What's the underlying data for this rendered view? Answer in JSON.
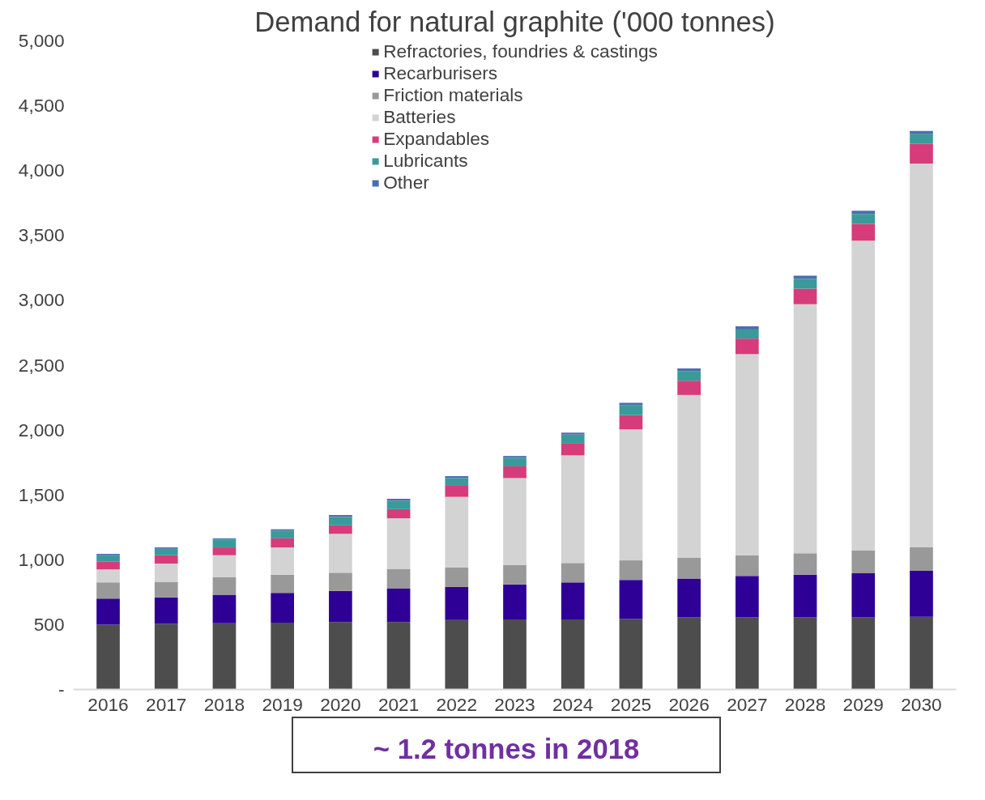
{
  "chart_data": {
    "type": "bar",
    "stacked": true,
    "title": "Demand for natural graphite ('000 tonnes)",
    "categories": [
      "2016",
      "2017",
      "2018",
      "2019",
      "2020",
      "2021",
      "2022",
      "2023",
      "2024",
      "2025",
      "2026",
      "2027",
      "2028",
      "2029",
      "2030"
    ],
    "series": [
      {
        "name": "Refractories, foundries & castings",
        "color": "#4d4d4d",
        "values": [
          500,
          505,
          510,
          515,
          520,
          520,
          535,
          540,
          540,
          545,
          555,
          555,
          555,
          555,
          560
        ]
      },
      {
        "name": "Recarburisers",
        "color": "#2e0096",
        "values": [
          200,
          205,
          220,
          230,
          240,
          260,
          255,
          270,
          285,
          300,
          300,
          320,
          330,
          340,
          355
        ]
      },
      {
        "name": "Friction materials",
        "color": "#999999",
        "values": [
          125,
          120,
          135,
          140,
          140,
          150,
          150,
          150,
          150,
          150,
          160,
          160,
          165,
          175,
          180
        ]
      },
      {
        "name": "Batteries",
        "color": "#d3d3d3",
        "values": [
          100,
          140,
          170,
          210,
          300,
          390,
          545,
          670,
          830,
          1010,
          1255,
          1550,
          1920,
          2390,
          2960
        ]
      },
      {
        "name": "Expandables",
        "color": "#d63c7a",
        "values": [
          60,
          65,
          60,
          70,
          65,
          70,
          85,
          90,
          90,
          110,
          110,
          120,
          120,
          130,
          150
        ]
      },
      {
        "name": "Lubricants",
        "color": "#3a9a9a",
        "values": [
          50,
          50,
          60,
          60,
          65,
          65,
          60,
          65,
          70,
          75,
          75,
          70,
          75,
          75,
          75
        ]
      },
      {
        "name": "Other",
        "color": "#4a6fb0",
        "values": [
          10,
          10,
          10,
          10,
          15,
          15,
          15,
          15,
          15,
          20,
          20,
          25,
          25,
          25,
          25
        ]
      }
    ],
    "ylim": [
      0,
      5000
    ],
    "yticks": [
      {
        "value": 0,
        "label": "-"
      },
      {
        "value": 500,
        "label": "500"
      },
      {
        "value": 1000,
        "label": "1,000"
      },
      {
        "value": 1500,
        "label": "1,500"
      },
      {
        "value": 2000,
        "label": "2,000"
      },
      {
        "value": 2500,
        "label": "2,500"
      },
      {
        "value": 3000,
        "label": "3,000"
      },
      {
        "value": 3500,
        "label": "3,500"
      },
      {
        "value": 4000,
        "label": "4,000"
      },
      {
        "value": 4500,
        "label": "4,500"
      },
      {
        "value": 5000,
        "label": "5,000"
      }
    ],
    "grid": false,
    "legend": "top",
    "annotations": [
      "~ 1.2 tonnes in 2018"
    ]
  }
}
